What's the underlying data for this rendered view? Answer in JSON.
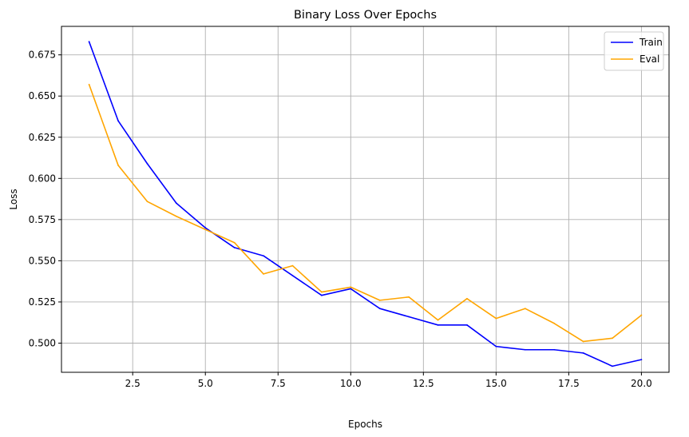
{
  "chart_data": {
    "type": "line",
    "title": "Binary Loss Over Epochs",
    "xlabel": "Epochs",
    "ylabel": "Loss",
    "x": [
      1,
      2,
      3,
      4,
      5,
      6,
      7,
      8,
      9,
      10,
      11,
      12,
      13,
      14,
      15,
      16,
      17,
      18,
      19,
      20
    ],
    "xlim": [
      0.05,
      20.95
    ],
    "ylim": [
      0.4823,
      0.6923
    ],
    "xticks": [
      2.5,
      5.0,
      7.5,
      10.0,
      12.5,
      15.0,
      17.5,
      20.0
    ],
    "xtick_labels": [
      "2.5",
      "5.0",
      "7.5",
      "10.0",
      "12.5",
      "15.0",
      "17.5",
      "20.0"
    ],
    "yticks": [
      0.5,
      0.525,
      0.55,
      0.575,
      0.6,
      0.625,
      0.65,
      0.675
    ],
    "ytick_labels": [
      "0.500",
      "0.525",
      "0.550",
      "0.575",
      "0.600",
      "0.625",
      "0.650",
      "0.675"
    ],
    "grid": true,
    "legend_position": "top-right",
    "series": [
      {
        "name": "Train",
        "color": "#0000ff",
        "values": [
          0.683,
          0.635,
          0.609,
          0.585,
          0.57,
          0.558,
          0.553,
          0.541,
          0.529,
          0.533,
          0.521,
          0.516,
          0.511,
          0.511,
          0.498,
          0.496,
          0.496,
          0.494,
          0.486,
          0.49
        ]
      },
      {
        "name": "Eval",
        "color": "#ffa500",
        "values": [
          0.657,
          0.608,
          0.586,
          0.577,
          0.569,
          0.561,
          0.542,
          0.547,
          0.531,
          0.534,
          0.526,
          0.528,
          0.514,
          0.527,
          0.515,
          0.521,
          0.512,
          0.501,
          0.503,
          0.517
        ]
      }
    ]
  }
}
